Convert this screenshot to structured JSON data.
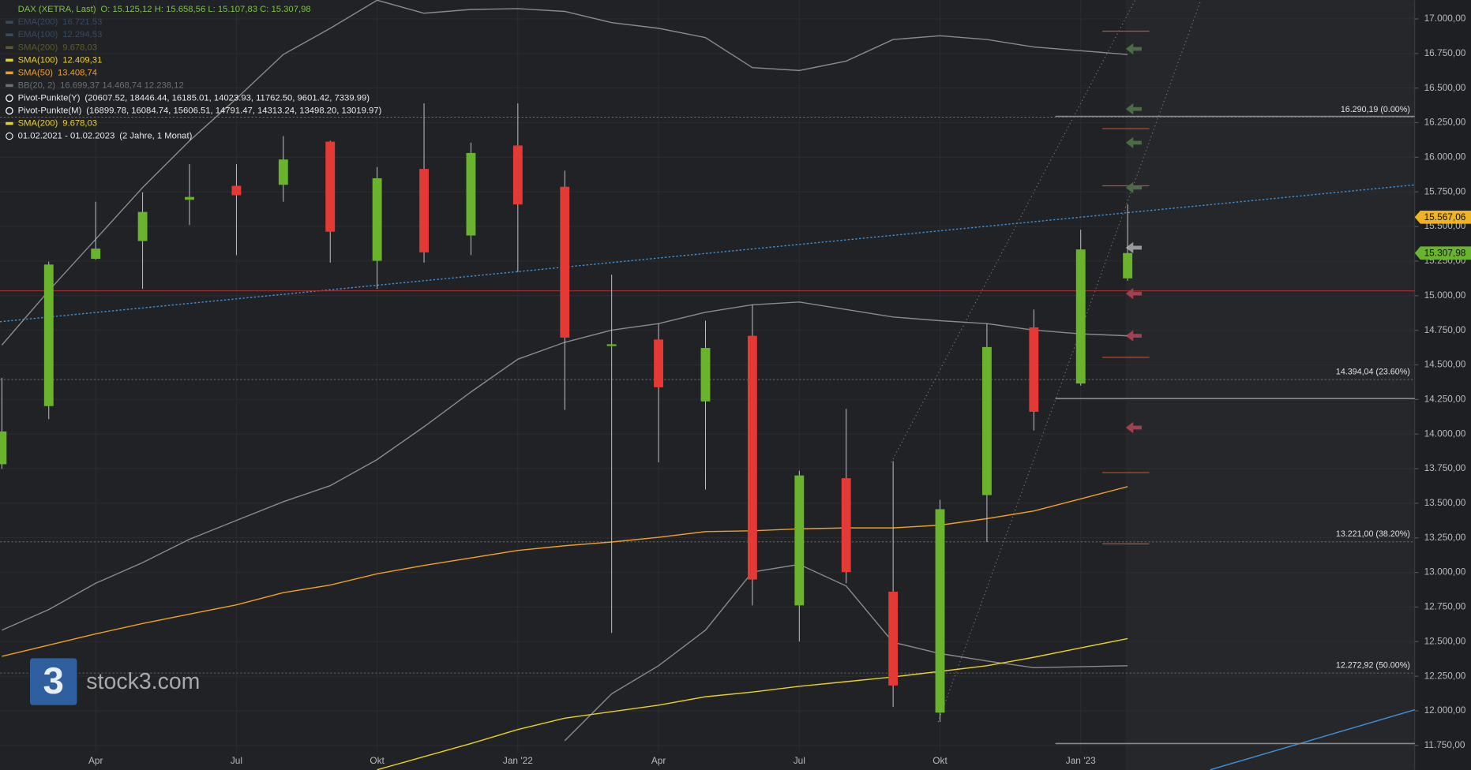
{
  "chart_data": {
    "type": "candlestick",
    "header": [
      {
        "label": "DAX (XETRA, Last)",
        "text": "O: 15.125,12  H: 15.658,56  L: 15.107,83  C: 15.307,98",
        "color": "#7cc242"
      },
      {
        "label": "EMA(200)",
        "text": "16.721,53",
        "color": "#3b4a5e"
      },
      {
        "label": "EMA(100)",
        "text": "12.294,53",
        "color": "#3b4a5e"
      },
      {
        "label": "SMA(200)",
        "text": "9.678,03",
        "color": "#5a5a2a"
      },
      {
        "label": "SMA(100)",
        "text": "12.409,31",
        "color": "#e8d21d"
      },
      {
        "label": "SMA(50)",
        "text": "13.408,74",
        "color": "#f0a020"
      },
      {
        "label": "BB(20, 2)",
        "text": "16.699,37  14.468,74  12.238,12",
        "color": "#6e6e6e"
      },
      {
        "label": "Pivot-Punkte(Y)",
        "text": "(20607.52,  18446.44,  16185.01,  14023.93,  11762.50,  9601.42,  7339.99)",
        "color": "#e8e8e8"
      },
      {
        "label": "Pivot-Punkte(M)",
        "text": "(16899.78,  16084.74,  15606.51,  14791.47,  14313.24,  13498.20,  13019.97)",
        "color": "#e8e8e8"
      },
      {
        "label": "SMA(200)",
        "text": "9.678,03",
        "color": "#e8d21d"
      },
      {
        "label": "01.02.2021 - 01.02.2023",
        "text": "(2 Jahre, 1 Monat)",
        "color": "#e8e8e8"
      }
    ],
    "categories": [
      null,
      null,
      "Apr",
      null,
      null,
      "Jul",
      null,
      null,
      "Okt",
      null,
      null,
      "Jan '22",
      null,
      null,
      "Apr",
      null,
      null,
      "Jul",
      null,
      null,
      "Okt",
      null,
      null,
      "Jan '23",
      null
    ],
    "open": [
      13782,
      14202,
      15266,
      15395,
      15693,
      15794,
      15801,
      16113,
      15252,
      15916,
      15435,
      16085,
      15787,
      14636,
      14683,
      14236,
      14710,
      12762,
      13681,
      12861,
      11987,
      13559,
      14771,
      14365,
      15125.12
    ],
    "high": [
      14406,
      15246,
      15679,
      15747,
      15950,
      15950,
      16153,
      16120,
      15930,
      16390,
      16106,
      16390,
      15903,
      15151,
      14798,
      14819,
      14934,
      13735,
      14182,
      13803,
      13525,
      14798,
      14900,
      15476,
      15658.56
    ],
    "low": [
      13748,
      14108,
      15260,
      15049,
      15510,
      15293,
      15679,
      15239,
      15049,
      15239,
      15293,
      15171,
      14175,
      12563,
      13796,
      13599,
      12762,
      12502,
      12922,
      12028,
      11920,
      13220,
      14026,
      14350,
      15107.83
    ],
    "close": [
      14019,
      15225,
      15340,
      15605,
      15713,
      15726,
      15984,
      15462,
      15848,
      15313,
      16031,
      15659,
      14697,
      14649,
      14338,
      14622,
      12949,
      13701,
      13003,
      12183,
      13457,
      14629,
      14161,
      15334,
      15307.98
    ],
    "up_color": "#6ab42d",
    "down_color": "#e53935",
    "overlays": [
      {
        "color": "#8a8a8a",
        "values": [
          14643,
          15036,
          15408,
          15781,
          16119,
          16424,
          16743,
          16932,
          17135,
          17041,
          17068,
          17074,
          17054,
          16973,
          16932,
          16865,
          16648,
          16627,
          16695,
          16851,
          16878,
          16851,
          16797,
          16770,
          16743
        ]
      },
      {
        "color": "#8a8a8a",
        "values": [
          12583,
          12732,
          12922,
          13071,
          13240,
          13376,
          13511,
          13627,
          13816,
          14053,
          14304,
          14541,
          14663,
          14751,
          14798,
          14880,
          14934,
          14954,
          14900,
          14846,
          14819,
          14798,
          14751,
          14724,
          14710
        ]
      },
      {
        "color": "#8a8a8a",
        "values": [
          null,
          null,
          null,
          null,
          null,
          null,
          null,
          null,
          null,
          null,
          null,
          null,
          11784,
          12123,
          12326,
          12583,
          13003,
          13058,
          12902,
          12495,
          12414,
          12360,
          12312,
          12319,
          12326
        ]
      },
      {
        "color": "#f0a020",
        "values": [
          12394,
          12475,
          12556,
          12631,
          12699,
          12766,
          12854,
          12909,
          12990,
          13051,
          13105,
          13159,
          13193,
          13220,
          13254,
          13295,
          13301,
          13315,
          13322,
          13322,
          13342,
          13389,
          13444,
          13532,
          13620
        ]
      },
      {
        "color": "#e8d21d",
        "values": [
          null,
          null,
          null,
          null,
          null,
          null,
          null,
          null,
          11574,
          11669,
          11764,
          11865,
          11947,
          11994,
          12041,
          12102,
          12136,
          12177,
          12211,
          12245,
          12285,
          12326,
          12387,
          12455,
          12522
        ]
      }
    ],
    "ylim": [
      11574,
      17135
    ],
    "yticks": [
      {
        "value": 11750,
        "label": "11.750,00"
      },
      {
        "value": 12000,
        "label": "12.000,00"
      },
      {
        "value": 12250,
        "label": "12.250,00"
      },
      {
        "value": 12500,
        "label": "12.500,00"
      },
      {
        "value": 12750,
        "label": "12.750,00"
      },
      {
        "value": 13000,
        "label": "13.000,00"
      },
      {
        "value": 13250,
        "label": "13.250,00"
      },
      {
        "value": 13500,
        "label": "13.500,00"
      },
      {
        "value": 13750,
        "label": "13.750,00"
      },
      {
        "value": 14000,
        "label": "14.000,00"
      },
      {
        "value": 14250,
        "label": "14.250,00"
      },
      {
        "value": 14500,
        "label": "14.500,00"
      },
      {
        "value": 14750,
        "label": "14.750,00"
      },
      {
        "value": 15000,
        "label": "15.000,00"
      },
      {
        "value": 15250,
        "label": "15.250,00"
      },
      {
        "value": 15500,
        "label": "15.500,00"
      },
      {
        "value": 15750,
        "label": "15.750,00"
      },
      {
        "value": 16000,
        "label": "16.000,00"
      },
      {
        "value": 16250,
        "label": "16.250,00"
      },
      {
        "value": 16500,
        "label": "16.500,00"
      },
      {
        "value": 16750,
        "label": "16.750,00"
      },
      {
        "value": 17000,
        "label": "17.000,00"
      }
    ],
    "fib_levels": [
      {
        "value": 16290.19,
        "label": "16.290,19 (0.00%)"
      },
      {
        "value": 14394.04,
        "label": "14.394,04 (23.60%)"
      },
      {
        "value": 13221.0,
        "label": "13.221,00 (38.20%)"
      },
      {
        "value": 12272.92,
        "label": "12.272,92 (50.00%)"
      }
    ],
    "price_tags": [
      {
        "value": 15567.06,
        "label": "15.567,06",
        "color": "#f0b323"
      },
      {
        "value": 15307.98,
        "label": "15.307,98",
        "color": "#6ab42d"
      }
    ],
    "watermark": "stock3.com",
    "watermark_logo": "3"
  }
}
